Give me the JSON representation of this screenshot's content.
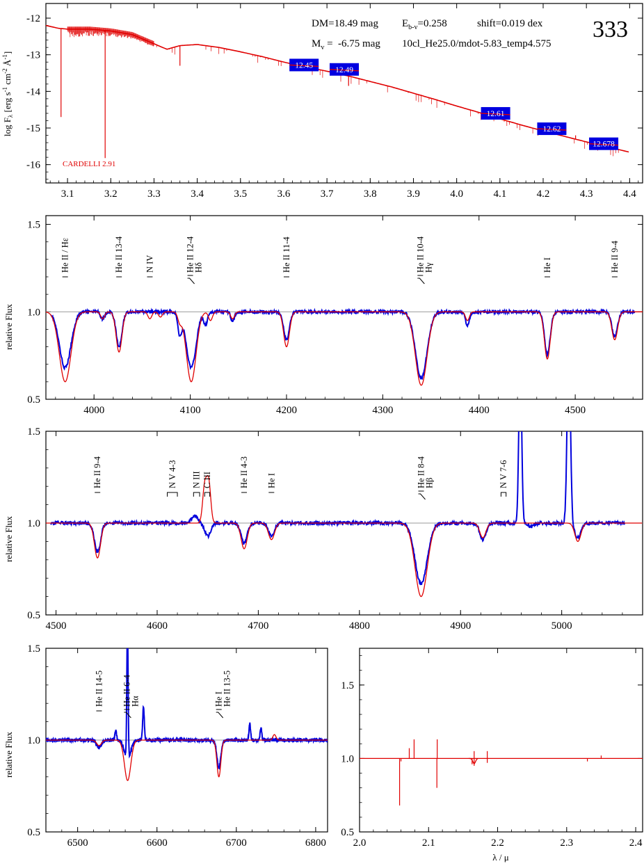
{
  "colors": {
    "model": "#e00000",
    "observed": "#0000dd",
    "reference": "#999999",
    "axis": "#000000",
    "mag_box": "#0000e0"
  },
  "chart_data": [
    {
      "id": "sed",
      "type": "line",
      "xlim": [
        3.05,
        4.43
      ],
      "ylim": [
        -16.5,
        -11.6
      ],
      "xticks": [
        3.1,
        3.2,
        3.3,
        3.4,
        3.5,
        3.6,
        3.7,
        3.8,
        3.9,
        4.0,
        4.1,
        4.2,
        4.3,
        4.4
      ],
      "xtick_labels": [
        "3.1",
        "3.2",
        "3.3",
        "3.4",
        "3.5",
        "3.6",
        "3.7",
        "3.8",
        "3.9",
        "4.0",
        "4.1",
        "4.2",
        "4.3",
        "4.4"
      ],
      "yticks": [
        -12,
        -13,
        -14,
        -15,
        -16
      ],
      "ytick_labels": [
        "-12",
        "-13",
        "-14",
        "-15",
        "-16"
      ],
      "ylabel_parts": {
        "log": "log F",
        "lambda": "λ",
        "units": " [erg s",
        "exp1": "-1",
        "cm": " cm",
        "exp2": "-2",
        "ang": " Å",
        "exp3": "-1",
        "close": "]"
      },
      "info": {
        "dm": "DM=18.49 mag",
        "ebv_main": "E",
        "ebv_sub": "b-v",
        "ebv_value": "=0.258",
        "shift": "shift=0.019 dex",
        "mv_main": "M",
        "mv_sub": "v",
        "mv_value": " =  -6.75 mag",
        "model_name": "10cl_He25.0/mdot-5.83_temp4.575",
        "panel_number": "333",
        "reddening_law": "CARDELLI 2.91"
      },
      "model_sed": [
        [
          3.05,
          -12.2
        ],
        [
          3.08,
          -12.28
        ],
        [
          3.1,
          -12.3
        ],
        [
          3.15,
          -12.3
        ],
        [
          3.2,
          -12.35
        ],
        [
          3.25,
          -12.45
        ],
        [
          3.3,
          -12.7
        ],
        [
          3.33,
          -12.85
        ],
        [
          3.36,
          -12.75
        ],
        [
          3.4,
          -12.72
        ],
        [
          3.45,
          -12.8
        ],
        [
          3.5,
          -12.92
        ],
        [
          3.55,
          -13.05
        ],
        [
          3.6,
          -13.2
        ],
        [
          3.65,
          -13.33
        ],
        [
          3.7,
          -13.45
        ],
        [
          3.75,
          -13.58
        ],
        [
          3.8,
          -13.73
        ],
        [
          3.85,
          -13.88
        ],
        [
          3.9,
          -14.05
        ],
        [
          3.95,
          -14.22
        ],
        [
          4.0,
          -14.4
        ],
        [
          4.05,
          -14.57
        ],
        [
          4.1,
          -14.75
        ],
        [
          4.15,
          -14.92
        ],
        [
          4.2,
          -15.08
        ],
        [
          4.25,
          -15.23
        ],
        [
          4.3,
          -15.38
        ],
        [
          4.35,
          -15.52
        ],
        [
          4.4,
          -15.66
        ]
      ],
      "magnitudes": [
        {
          "log_lambda": 3.647,
          "log_flux": -13.28,
          "label": "12.45"
        },
        {
          "log_lambda": 3.74,
          "log_flux": -13.4,
          "label": "12.49"
        },
        {
          "log_lambda": 4.09,
          "log_flux": -14.6,
          "label": "12.61"
        },
        {
          "log_lambda": 4.22,
          "log_flux": -15.02,
          "label": "12.62"
        },
        {
          "log_lambda": 4.34,
          "log_flux": -15.43,
          "label": "12.678"
        }
      ]
    },
    {
      "id": "blue",
      "type": "line",
      "xlim": [
        3950,
        4570
      ],
      "ylim": [
        0.5,
        1.55
      ],
      "xticks": [
        4000,
        4100,
        4200,
        4300,
        4400,
        4500
      ],
      "xtick_labels": [
        "4000",
        "4100",
        "4200",
        "4300",
        "4400",
        "4500"
      ],
      "yticks": [
        0.5,
        1.0,
        1.5
      ],
      "ytick_labels": [
        "0.5",
        "1.0",
        "1.5"
      ],
      "ylabel": "relative Flux",
      "line_ids": [
        {
          "x": 3970,
          "label": "He II / Hε"
        },
        {
          "x": 4026,
          "label": "He II 13-4"
        },
        {
          "x": 4058,
          "label": "N IV"
        },
        {
          "x": 4100,
          "label": "He II 12-4",
          "label2": "Hδ",
          "bracket": true
        },
        {
          "x": 4200,
          "label": "He II 11-4"
        },
        {
          "x": 4339,
          "label": "He II 10-4",
          "label2": "Hγ",
          "bracket": true
        },
        {
          "x": 4471,
          "label": "He I"
        },
        {
          "x": 4541,
          "label": "He II 9-4"
        }
      ],
      "model_lines": [
        [
          3970,
          0.4,
          6
        ],
        [
          4009,
          0.04,
          2
        ],
        [
          4026,
          0.23,
          3
        ],
        [
          4058,
          0.04,
          2
        ],
        [
          4069,
          0.03,
          2
        ],
        [
          4089,
          0.05,
          2
        ],
        [
          4101,
          0.4,
          5
        ],
        [
          4121,
          0.05,
          2
        ],
        [
          4144,
          0.04,
          2
        ],
        [
          4200,
          0.2,
          3
        ],
        [
          4340,
          0.42,
          6
        ],
        [
          4388,
          0.05,
          2
        ],
        [
          4471,
          0.27,
          3
        ],
        [
          4541,
          0.16,
          3
        ]
      ],
      "observed_lines": [
        [
          3970,
          0.32,
          6
        ],
        [
          4009,
          0.04,
          2
        ],
        [
          4026,
          0.2,
          3
        ],
        [
          4089,
          0.12,
          2
        ],
        [
          4101,
          0.32,
          5
        ],
        [
          4116,
          0.07,
          2
        ],
        [
          4144,
          0.05,
          2
        ],
        [
          4200,
          0.16,
          3
        ],
        [
          4340,
          0.38,
          6
        ],
        [
          4388,
          0.08,
          2
        ],
        [
          4471,
          0.24,
          3
        ],
        [
          4541,
          0.14,
          3
        ]
      ]
    },
    {
      "id": "green",
      "type": "line",
      "xlim": [
        4490,
        5080
      ],
      "ylim": [
        0.5,
        1.5
      ],
      "xticks": [
        4500,
        4600,
        4700,
        4800,
        4900,
        5000
      ],
      "xtick_labels": [
        "4500",
        "4600",
        "4700",
        "4800",
        "4900",
        "5000"
      ],
      "yticks": [
        0.5,
        1.0,
        1.5
      ],
      "ytick_labels": [
        "0.5",
        "1.0",
        "1.5"
      ],
      "ylabel": "relative Flux",
      "line_ids": [
        {
          "x": 4541,
          "label": "He II 9-4"
        },
        {
          "x": 4610,
          "label": "N V 4-3",
          "bracket": true,
          "x2": 4620
        },
        {
          "x": 4636,
          "label": "N III",
          "bracket": true,
          "x2": 4642
        },
        {
          "x": 4647,
          "label": "C III",
          "bracket": true,
          "x2": 4652
        },
        {
          "x": 4686,
          "label": "He II 4-3"
        },
        {
          "x": 4713,
          "label": "He I"
        },
        {
          "x": 4861,
          "label": "He II 8-4",
          "label2": "Hβ",
          "bracket": true
        },
        {
          "x": 4940,
          "label": "N V 7-6",
          "bracket": true,
          "x2": 4945
        }
      ],
      "model_lines": [
        [
          4541,
          0.19,
          3
        ],
        [
          4686,
          0.14,
          3
        ],
        [
          4713,
          0.09,
          3
        ],
        [
          4861,
          0.4,
          6
        ],
        [
          4922,
          0.08,
          3
        ],
        [
          5016,
          0.1,
          3
        ]
      ],
      "model_emission": [
        [
          4647,
          0.2,
          2
        ],
        [
          4651,
          0.22,
          2
        ]
      ],
      "observed_lines": [
        [
          4541,
          0.16,
          3
        ],
        [
          4650,
          0.07,
          3
        ],
        [
          4686,
          0.11,
          3
        ],
        [
          4713,
          0.07,
          3
        ],
        [
          4861,
          0.33,
          6
        ],
        [
          4922,
          0.09,
          3
        ],
        [
          5016,
          0.08,
          3
        ],
        [
          4970,
          0.02,
          3
        ]
      ],
      "observed_emission": [
        [
          4959,
          0.9,
          1.4
        ],
        [
          5007,
          1.0,
          1.6
        ],
        [
          4637,
          0.04,
          3
        ]
      ]
    },
    {
      "id": "halpha",
      "type": "line",
      "xlim": [
        6460,
        6815
      ],
      "ylim": [
        0.5,
        1.5
      ],
      "xticks": [
        6500,
        6600,
        6700,
        6800
      ],
      "xtick_labels": [
        "6500",
        "6600",
        "6700",
        "6800"
      ],
      "yticks": [
        0.5,
        1.0,
        1.5
      ],
      "ytick_labels": [
        "0.5",
        "1.0",
        "1.5"
      ],
      "ylabel": "relative Flux",
      "line_ids": [
        {
          "x": 6527,
          "label": "He II 14-5"
        },
        {
          "x": 6562,
          "label": "He II 6-4",
          "label2": "Hα",
          "bracket": true
        },
        {
          "x": 6678,
          "label": "He I",
          "label2": "He II 13-5",
          "bracket": true
        }
      ],
      "model_lines": [
        [
          6527,
          0.03,
          3
        ],
        [
          6563,
          0.22,
          4
        ],
        [
          6678,
          0.2,
          2.5
        ]
      ],
      "model_emission": [
        [
          6748,
          0.03,
          2
        ]
      ],
      "observed_lines": [
        [
          6527,
          0.04,
          3
        ],
        [
          6563,
          0.1,
          4
        ],
        [
          6678,
          0.15,
          2.5
        ]
      ],
      "observed_emission": [
        [
          6562.8,
          0.75,
          0.8
        ],
        [
          6583,
          0.18,
          1
        ],
        [
          6548,
          0.05,
          1
        ],
        [
          6717,
          0.09,
          1
        ],
        [
          6731,
          0.07,
          1
        ]
      ]
    },
    {
      "id": "nir",
      "type": "line",
      "xlim": [
        2.0,
        2.41
      ],
      "ylim": [
        0.5,
        1.75
      ],
      "xticks": [
        2.0,
        2.1,
        2.2,
        2.3,
        2.4
      ],
      "xtick_labels": [
        "2.0",
        "2.1",
        "2.2",
        "2.3",
        "2.4"
      ],
      "yticks": [
        0.5,
        1.0,
        1.5
      ],
      "ytick_labels": [
        "0.5",
        "1.0",
        "1.5"
      ],
      "xlabel": "λ / μ",
      "model_spikes": [
        [
          2.058,
          -0.32
        ],
        [
          2.06,
          -0.02
        ],
        [
          2.072,
          0.07
        ],
        [
          2.079,
          0.13
        ],
        [
          2.112,
          -0.2
        ],
        [
          2.1125,
          0.13
        ],
        [
          2.163,
          -0.04
        ],
        [
          2.166,
          -0.05
        ],
        [
          2.166,
          0.05
        ],
        [
          2.185,
          0.05
        ],
        [
          2.185,
          -0.03
        ],
        [
          2.33,
          -0.02
        ],
        [
          2.35,
          0.02
        ]
      ]
    }
  ]
}
